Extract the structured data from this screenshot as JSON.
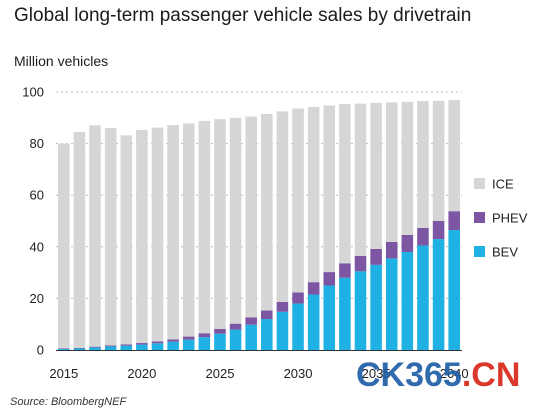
{
  "title": "Global long-term passenger vehicle sales by drivetrain",
  "source": "Source: BloombergNEF",
  "watermark": {
    "part1": "CK365",
    "part2": ".CN"
  },
  "colors": {
    "ice": "#d6d6d6",
    "phev": "#7d56a3",
    "bev": "#1fb1e3",
    "grid": "#b9b9b9"
  },
  "chart_data": {
    "type": "bar",
    "stacked": true,
    "ylabel": "Million vehicles",
    "xlabel": "",
    "ylim": [
      0,
      100
    ],
    "yticks": [
      0,
      20,
      40,
      60,
      80,
      100
    ],
    "xticks": [
      "2015",
      "2020",
      "2025",
      "2030",
      "2035",
      "2040"
    ],
    "grid": "dotted horizontal",
    "legend_position": "right",
    "categories": [
      "2015",
      "2016",
      "2017",
      "2018",
      "2019",
      "2020",
      "2021",
      "2022",
      "2023",
      "2024",
      "2025",
      "2026",
      "2027",
      "2028",
      "2029",
      "2030",
      "2031",
      "2032",
      "2033",
      "2034",
      "2035",
      "2036",
      "2037",
      "2038",
      "2039",
      "2040"
    ],
    "series": [
      {
        "name": "BEV",
        "color": "#1fb1e3",
        "values": [
          0.4,
          0.6,
          1.0,
          1.4,
          1.7,
          2.1,
          2.6,
          3.2,
          4.0,
          5.0,
          6.3,
          7.9,
          9.8,
          12.0,
          14.8,
          18.0,
          21.5,
          25.0,
          28.0,
          30.5,
          33.0,
          35.5,
          38.0,
          40.5,
          43.0,
          46.5
        ]
      },
      {
        "name": "PHEV",
        "color": "#7d56a3",
        "values": [
          0.2,
          0.2,
          0.3,
          0.4,
          0.5,
          0.6,
          0.7,
          0.9,
          1.2,
          1.5,
          1.9,
          2.3,
          2.8,
          3.3,
          3.8,
          4.3,
          4.8,
          5.2,
          5.6,
          6.0,
          6.2,
          6.4,
          6.6,
          6.8,
          7.0,
          7.3
        ]
      },
      {
        "name": "ICE",
        "color": "#d6d6d6",
        "values": [
          79.4,
          83.7,
          85.8,
          84.2,
          81.0,
          82.6,
          82.9,
          83.1,
          82.6,
          82.3,
          81.3,
          79.8,
          77.9,
          76.2,
          73.9,
          71.3,
          67.9,
          64.6,
          61.8,
          59.0,
          56.6,
          54.1,
          51.6,
          49.2,
          46.6,
          43.1
        ]
      }
    ]
  }
}
